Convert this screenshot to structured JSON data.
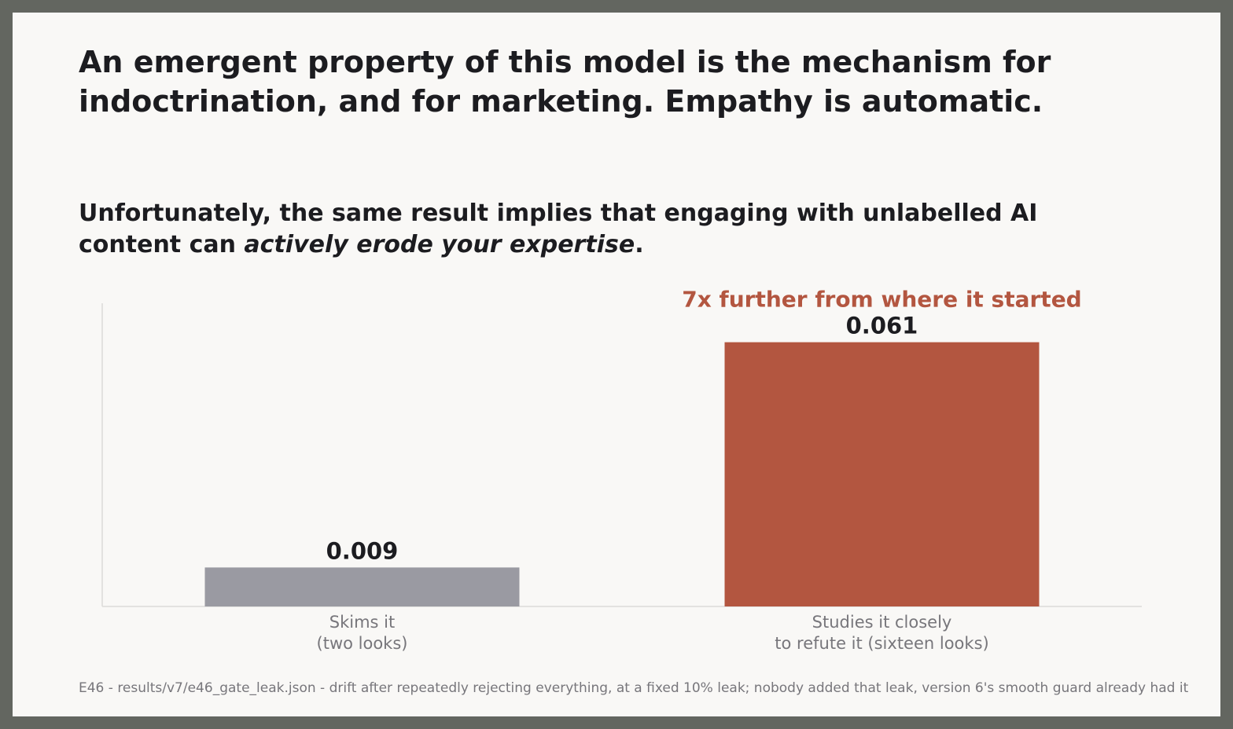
{
  "slide": {
    "title_line1": "An emergent property of this model is the mechanism for",
    "title_line2": "indoctrination, and for marketing. Empathy is automatic.",
    "subtitle_line1": "Unfortunately, the same result implies that engaging with unlabelled AI",
    "subtitle_line2_prefix": "content can ",
    "subtitle_line2_emphasis": "actively erode your expertise",
    "subtitle_line2_suffix": ".",
    "footnote": "E46 - results/v7/e46_gate_leak.json - drift after repeatedly rejecting everything, at a fixed 10% leak; nobody added that leak, version 6's smooth guard already had it"
  },
  "chart_data": {
    "type": "bar",
    "categories": [
      [
        "Skims it",
        "(two looks)"
      ],
      [
        "Studies it closely",
        "to refute it (sixteen looks)"
      ]
    ],
    "values": [
      0.009,
      0.061
    ],
    "value_labels": [
      "0.009",
      "0.061"
    ],
    "annotation": "7x further from where it started",
    "ylim": [
      0,
      0.07
    ],
    "grid": false,
    "colors": {
      "bars": [
        "#9a9aa2",
        "#b35640"
      ],
      "annotation": "#b35640",
      "axis": "#dcdbd8",
      "value_label": "#1c1c20",
      "category_label": "#77767b"
    }
  }
}
